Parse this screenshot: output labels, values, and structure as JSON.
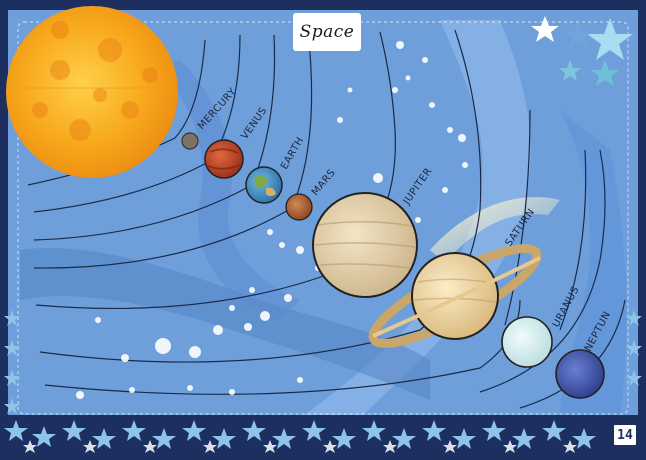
{
  "poster": {
    "title": "Space",
    "page_number": "14"
  },
  "planets": [
    {
      "name": "MERCURY",
      "color": "#7d7467"
    },
    {
      "name": "VENUS",
      "color": "#b9422b"
    },
    {
      "name": "EARTH",
      "color": "#3f8fc6"
    },
    {
      "name": "MARS",
      "color": "#a8552e"
    },
    {
      "name": "JUPITER",
      "color": "#d8c4a0"
    },
    {
      "name": "SATURN",
      "color": "#e4c898"
    },
    {
      "name": "URANUS",
      "color": "#d8eef0"
    },
    {
      "name": "NEPTUN",
      "color": "#3c4fa8"
    }
  ],
  "icons": [
    "sun-icon",
    "star-icon"
  ],
  "colors": {
    "frame": "#1c2f5e",
    "space": "#6e9fda",
    "sun": "#f6a81b",
    "stars": "#a9dcf0"
  }
}
